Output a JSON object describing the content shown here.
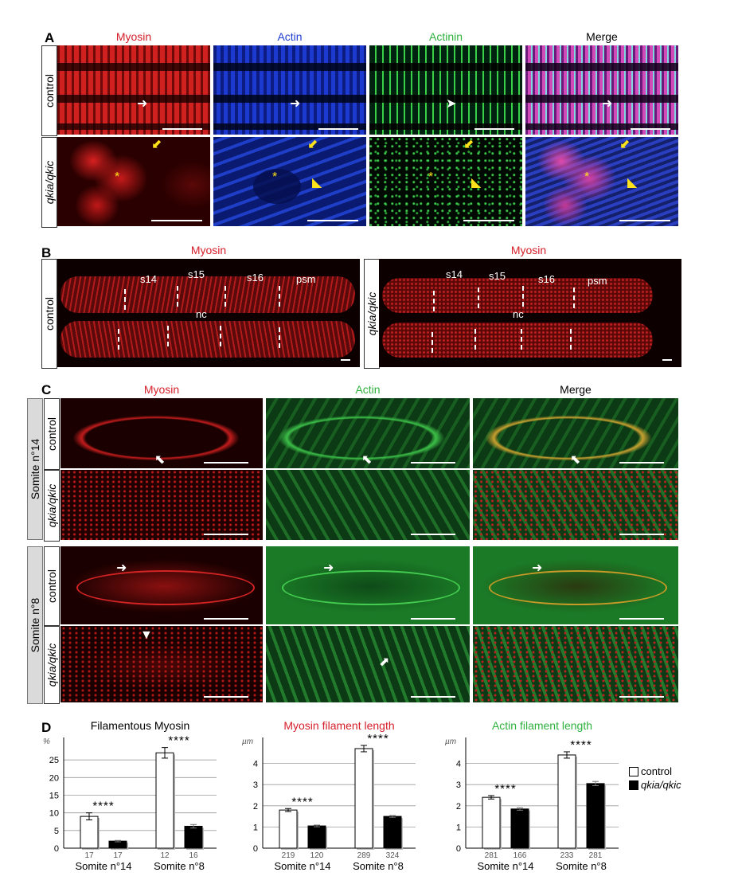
{
  "panels": {
    "A": {
      "letter": "A",
      "channels": [
        "Myosin",
        "Actin",
        "Actinin",
        "Merge"
      ],
      "rows": [
        "control",
        "qkia/qkic"
      ]
    },
    "B": {
      "letter": "B",
      "title_left": "Myosin",
      "title_right": "Myosin",
      "row_left": "control",
      "row_right": "qkia/qkic",
      "somites": [
        "s14",
        "s15",
        "s16",
        "psm"
      ],
      "nc": "nc"
    },
    "C": {
      "letter": "C",
      "channels": [
        "Myosin",
        "Actin",
        "Merge"
      ],
      "groups": [
        "Somite n°14",
        "Somite n°8"
      ],
      "rows": [
        "control",
        "qkia/qkic",
        "control",
        "qkia/qkic"
      ]
    },
    "D": {
      "letter": "D",
      "legend": [
        "control",
        "qkia/qkic"
      ],
      "significance": "****"
    }
  },
  "colors": {
    "myosin": "#d51e2a",
    "actin_blue": "#1f3fd0",
    "actin_green": "#2fb13d",
    "control_bar": "#ffffff",
    "mutant_bar": "#000000"
  },
  "chart_data": [
    {
      "type": "bar",
      "title": "Filamentous Myosin",
      "unit": "%",
      "ylim": [
        0,
        30
      ],
      "yticks": [
        0,
        5,
        10,
        15,
        20,
        25
      ],
      "groups": [
        "Somite n°14",
        "Somite n°8"
      ],
      "series": [
        {
          "name": "control",
          "values": [
            9,
            27
          ],
          "errors": [
            1.0,
            1.5
          ],
          "n": [
            "17",
            "12"
          ]
        },
        {
          "name": "qkia/qkic",
          "values": [
            2,
            6.2
          ],
          "errors": [
            0.2,
            0.5
          ],
          "n": [
            "17",
            "16"
          ]
        }
      ],
      "annotations": [
        "****",
        "****"
      ]
    },
    {
      "type": "bar",
      "title": "Myosin filament length",
      "unit": "µm",
      "ylim": [
        0,
        5
      ],
      "yticks": [
        0,
        1,
        2,
        3,
        4
      ],
      "groups": [
        "Somite n°14",
        "Somite n°8"
      ],
      "series": [
        {
          "name": "control",
          "values": [
            1.8,
            4.7
          ],
          "errors": [
            0.07,
            0.15
          ],
          "n": [
            "219",
            "289"
          ]
        },
        {
          "name": "qkia/qkic",
          "values": [
            1.05,
            1.5
          ],
          "errors": [
            0.04,
            0.04
          ],
          "n": [
            "120",
            "324"
          ]
        }
      ],
      "annotations": [
        "****",
        "****"
      ]
    },
    {
      "type": "bar",
      "title": "Actin filament length",
      "unit": "µm",
      "ylim": [
        0,
        5
      ],
      "yticks": [
        0,
        1,
        2,
        3,
        4
      ],
      "groups": [
        "Somite n°14",
        "Somite n°8"
      ],
      "series": [
        {
          "name": "control",
          "values": [
            2.4,
            4.4
          ],
          "errors": [
            0.08,
            0.15
          ],
          "n": [
            "281",
            "233"
          ]
        },
        {
          "name": "qkia/qkic",
          "values": [
            1.85,
            3.05
          ],
          "errors": [
            0.06,
            0.1
          ],
          "n": [
            "166",
            "281"
          ]
        }
      ],
      "annotations": [
        "****",
        "****"
      ]
    }
  ]
}
